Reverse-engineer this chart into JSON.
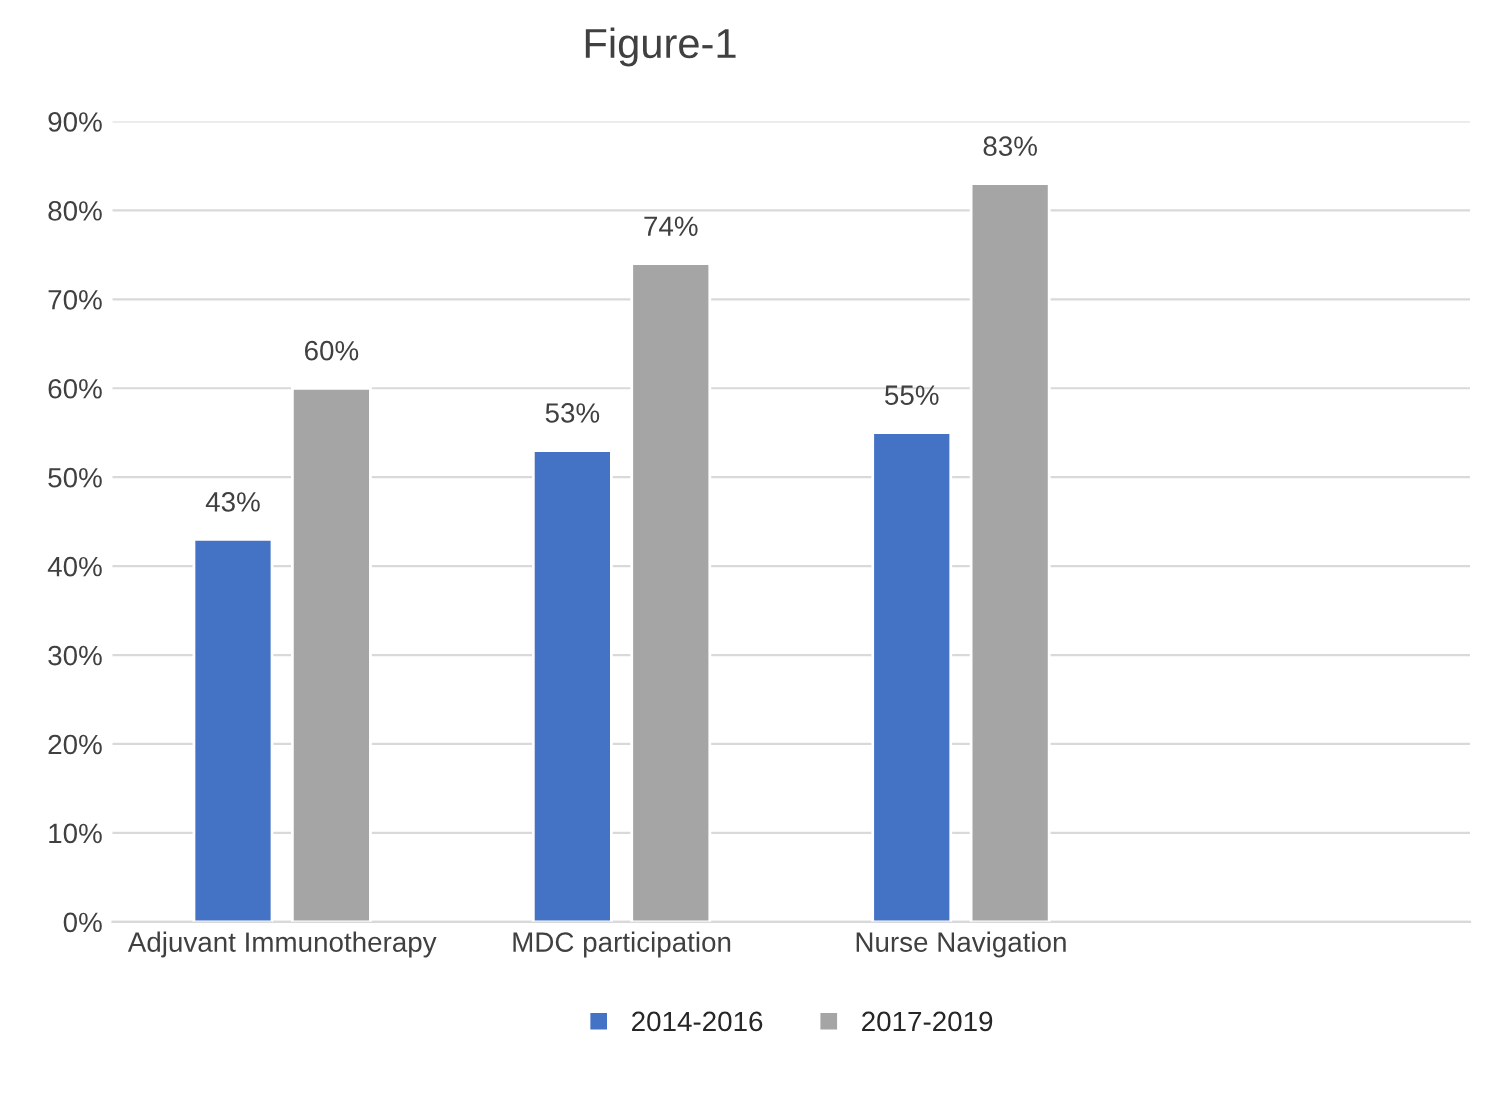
{
  "chart_data": {
    "type": "bar",
    "title": "Figure-1",
    "categories": [
      "Adjuvant Immunotherapy",
      "MDC participation",
      "Nurse Navigation",
      null
    ],
    "series": [
      {
        "name": "2014-2016",
        "color": "#4472c4",
        "values": [
          43,
          53,
          55,
          null
        ],
        "value_labels": [
          "43%",
          "53%",
          "55%",
          null
        ]
      },
      {
        "name": "2017-2019",
        "color": "#a5a5a5",
        "values": [
          60,
          74,
          83,
          null
        ],
        "value_labels": [
          "60%",
          "74%",
          "83%",
          null
        ]
      }
    ],
    "ylim": [
      0,
      90
    ],
    "yticks": [
      {
        "value": 0,
        "label": "0%"
      },
      {
        "value": 10,
        "label": "10%"
      },
      {
        "value": 20,
        "label": "20%"
      },
      {
        "value": 30,
        "label": "30%"
      },
      {
        "value": 40,
        "label": "40%"
      },
      {
        "value": 50,
        "label": "50%"
      },
      {
        "value": 60,
        "label": "60%"
      },
      {
        "value": 70,
        "label": "70%"
      },
      {
        "value": 80,
        "label": "80%"
      },
      {
        "value": 90,
        "label": "90%"
      }
    ],
    "grid": "y",
    "legend": "bottom"
  }
}
